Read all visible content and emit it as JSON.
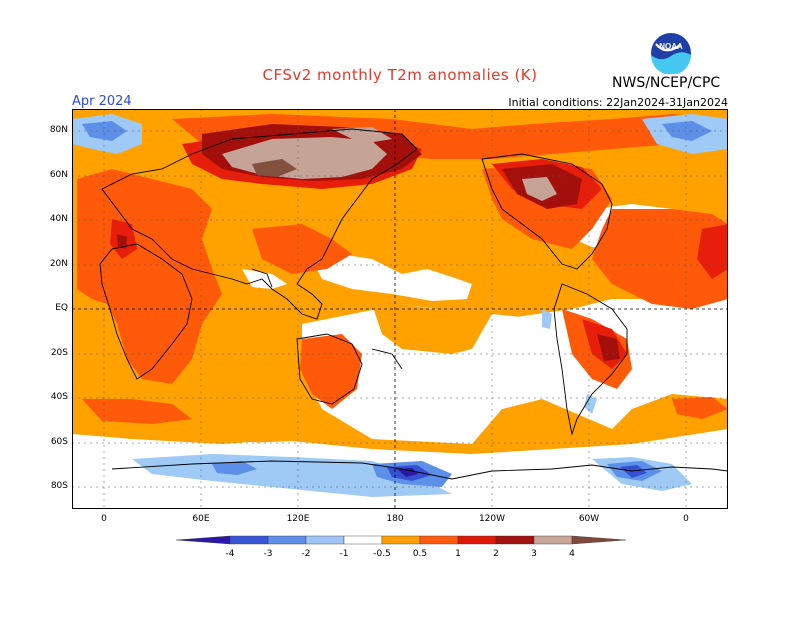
{
  "header": {
    "title": "CFSv2 monthly T2m anomalies (K)",
    "org": "NWS/NCEP/CPC",
    "month": "Apr 2024",
    "init": "Initial conditions: 22Jan2024-31Jan2024",
    "logo_text": "NOAA"
  },
  "lat_labels": [
    "80N",
    "60N",
    "40N",
    "20N",
    "EQ",
    "20S",
    "40S",
    "60S",
    "80S"
  ],
  "lon_labels": [
    "0",
    "60E",
    "120E",
    "180",
    "120W",
    "60W",
    "0"
  ],
  "colorbar": {
    "labels": [
      "-4",
      "-3",
      "-2",
      "-1",
      "-0.5",
      "0.5",
      "1",
      "2",
      "3",
      "4"
    ],
    "colors": [
      "#2a18a8",
      "#3a56d6",
      "#5d8ee8",
      "#9ec5f5",
      "#ffffff",
      "#ff9f00",
      "#ff5a10",
      "#e01a0a",
      "#a0130f",
      "#c8a59a",
      "#7d4a3c"
    ]
  },
  "colors": {
    "positive_weak": "#ffa200",
    "positive_mod": "#ff5a0a",
    "positive_strong": "#e61e0a",
    "positive_vstrong": "#a3100c",
    "positive_extreme": "#c6a397",
    "positive_max": "#82513e",
    "negative_weak": "#9ecaf5",
    "negative_mod": "#5b8fe8",
    "negative_strong": "#3550d0",
    "negative_extreme": "#2a18a0"
  }
}
